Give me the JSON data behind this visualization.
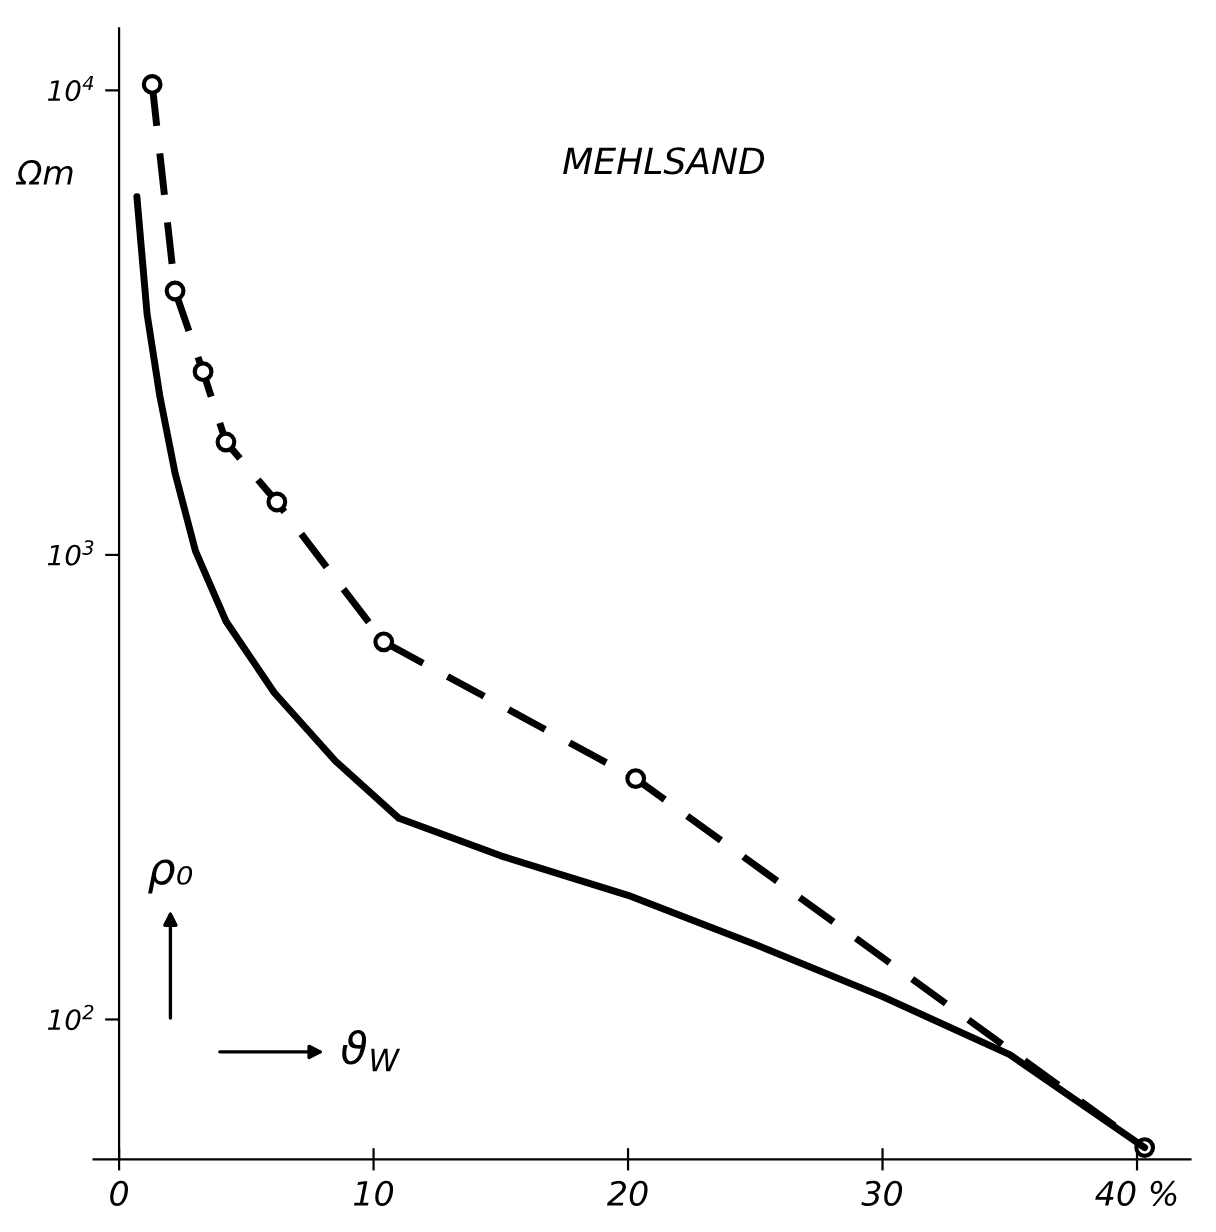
{
  "chart_data": {
    "type": "line",
    "title": "MEHLSAND",
    "xlabel": "ϑ$_{W}$",
    "ylabel": "ρ₀",
    "annotations": [
      "Ωm"
    ],
    "log": "y",
    "xlim": [
      -1,
      42.1
    ],
    "ylim": [
      50,
      13600
    ],
    "xticks": [
      0,
      10,
      20,
      30,
      {
        "value": 40,
        "label": "40 %"
      }
    ],
    "yticks": [
      {
        "value": 100,
        "label": "10$^{2}$"
      },
      {
        "value": 1000,
        "label": "10$^{3}$"
      },
      {
        "value": 10000,
        "label": "10$^{4}$"
      }
    ],
    "grid": false,
    "series": [
      {
        "color": "#000000",
        "line_style": "dashed",
        "marker": "circle",
        "x": [
          1.3,
          2.2,
          3.3,
          4.2,
          6.2,
          10.4,
          20.3,
          40.3
        ],
        "values": [
          10300,
          3700,
          2480,
          1750,
          1300,
          650,
          330,
          53
        ]
      },
      {
        "color": "#000000",
        "line_style": "solid",
        "marker": "none",
        "x": [
          0.7,
          1.1,
          1.6,
          2.2,
          3.0,
          4.2,
          6.1,
          8.5,
          11.0,
          15.0,
          20.0,
          25.0,
          30.0,
          35.0,
          40.3
        ],
        "values": [
          5900,
          3300,
          2200,
          1500,
          1020,
          720,
          505,
          360,
          271,
          225,
          185,
          145,
          112,
          84,
          53
        ]
      }
    ]
  }
}
